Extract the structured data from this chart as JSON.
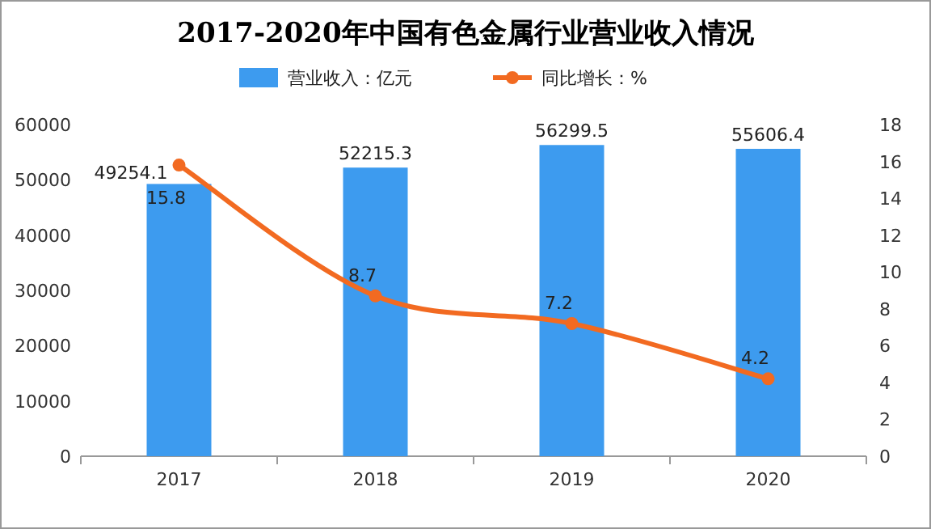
{
  "chart_data": {
    "type": "bar",
    "title": "2017-2020年中国有色金属行业营业收入情况",
    "categories": [
      "2017",
      "2018",
      "2019",
      "2020"
    ],
    "series": [
      {
        "name": "营业收入：亿元",
        "color": "#3d9bef",
        "values": [
          49254.1,
          52215.3,
          56299.5,
          55606.4
        ]
      },
      {
        "name": "同比增长：%",
        "type": "line",
        "axis": "y2",
        "color": "#f26a21",
        "values": [
          15.8,
          8.7,
          7.2,
          4.2
        ]
      }
    ],
    "ylim": [
      0,
      60000
    ],
    "yticks": [
      0,
      10000,
      20000,
      30000,
      40000,
      50000,
      60000
    ],
    "y2lim": [
      0,
      18
    ],
    "y2ticks": [
      0,
      2,
      4,
      6,
      8,
      10,
      12,
      14,
      16,
      18
    ],
    "data_labels": true,
    "legend": "top",
    "marker": "circle"
  }
}
